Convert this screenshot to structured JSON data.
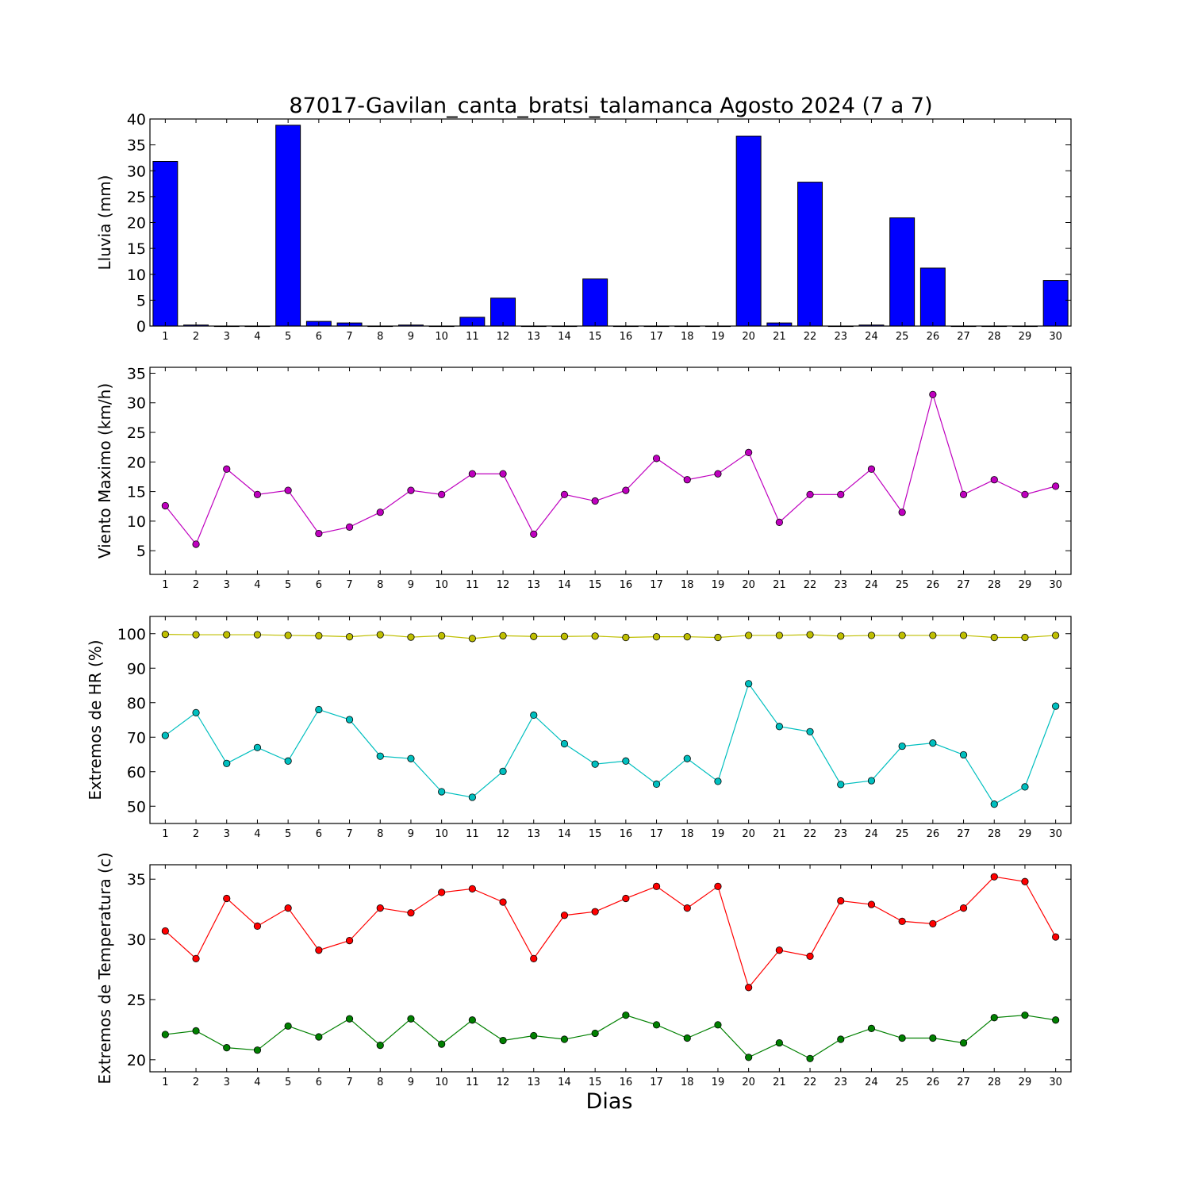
{
  "title": "87017-Gavilan_canta_bratsi_talamanca Agosto 2024  (7 a 7)",
  "xlabel": "Dias",
  "chart_data": [
    {
      "type": "bar",
      "ylabel": "Lluvia (mm)",
      "x": [
        1,
        2,
        3,
        4,
        5,
        6,
        7,
        8,
        9,
        10,
        11,
        12,
        13,
        14,
        15,
        16,
        17,
        18,
        19,
        20,
        21,
        22,
        23,
        24,
        25,
        26,
        27,
        28,
        29,
        30
      ],
      "ylim": [
        0,
        40
      ],
      "yticks": [
        0,
        5,
        10,
        15,
        20,
        25,
        30,
        35,
        40
      ],
      "xlim": [
        0.5,
        30.5
      ],
      "grid": false,
      "series": [
        {
          "values": [
            31.8,
            0.2,
            0,
            0,
            38.8,
            0.9,
            0.6,
            0,
            0.2,
            0,
            1.7,
            5.4,
            0,
            0,
            9.1,
            0,
            0,
            0,
            0,
            36.7,
            0.6,
            27.8,
            0,
            0.2,
            20.9,
            11.2,
            0,
            0,
            0,
            8.8
          ],
          "color": "#0000ff"
        }
      ]
    },
    {
      "type": "line",
      "ylabel": "Viento Maximo (km/h)",
      "x": [
        1,
        2,
        3,
        4,
        5,
        6,
        7,
        8,
        9,
        10,
        11,
        12,
        13,
        14,
        15,
        16,
        17,
        18,
        19,
        20,
        21,
        22,
        23,
        24,
        25,
        26,
        27,
        28,
        29,
        30
      ],
      "ylim": [
        1,
        36
      ],
      "yticks": [
        5,
        10,
        15,
        20,
        25,
        30,
        35
      ],
      "xlim": [
        0.5,
        30.5
      ],
      "grid": false,
      "series": [
        {
          "values": [
            12.6,
            6.1,
            18.8,
            14.5,
            15.2,
            7.9,
            9.0,
            11.5,
            15.2,
            14.5,
            18.0,
            18.0,
            7.8,
            14.5,
            13.4,
            15.2,
            20.6,
            17.0,
            18.0,
            21.6,
            9.8,
            14.5,
            14.5,
            18.8,
            11.5,
            31.4,
            14.5,
            17.0,
            14.5,
            15.9
          ],
          "color": "#bf00bf"
        }
      ]
    },
    {
      "type": "line",
      "ylabel": "Extremos de HR (%)",
      "x": [
        1,
        2,
        3,
        4,
        5,
        6,
        7,
        8,
        9,
        10,
        11,
        12,
        13,
        14,
        15,
        16,
        17,
        18,
        19,
        20,
        21,
        22,
        23,
        24,
        25,
        26,
        27,
        28,
        29,
        30
      ],
      "ylim": [
        45,
        105
      ],
      "yticks": [
        50,
        60,
        70,
        80,
        90,
        100
      ],
      "xlim": [
        0.5,
        30.5
      ],
      "grid": false,
      "series": [
        {
          "values": [
            99.8,
            99.7,
            99.7,
            99.7,
            99.5,
            99.4,
            99.1,
            99.7,
            99.0,
            99.4,
            98.6,
            99.4,
            99.2,
            99.2,
            99.3,
            98.9,
            99.1,
            99.1,
            98.9,
            99.5,
            99.5,
            99.7,
            99.3,
            99.5,
            99.5,
            99.5,
            99.5,
            98.9,
            98.9,
            99.5
          ],
          "color": "#bfbf00"
        },
        {
          "values": [
            70.5,
            77.1,
            62.4,
            67.0,
            63.1,
            78.0,
            75.1,
            64.5,
            63.8,
            54.2,
            52.6,
            60.1,
            76.4,
            68.1,
            62.2,
            63.1,
            56.4,
            63.8,
            57.2,
            85.5,
            73.1,
            71.6,
            56.3,
            57.4,
            67.4,
            68.3,
            64.9,
            50.6,
            55.6,
            79.0
          ],
          "color": "#00bfbf"
        }
      ]
    },
    {
      "type": "line",
      "ylabel": "Extremos de Temperatura (c)",
      "x": [
        1,
        2,
        3,
        4,
        5,
        6,
        7,
        8,
        9,
        10,
        11,
        12,
        13,
        14,
        15,
        16,
        17,
        18,
        19,
        20,
        21,
        22,
        23,
        24,
        25,
        26,
        27,
        28,
        29,
        30
      ],
      "ylim": [
        19,
        36.2
      ],
      "yticks": [
        20,
        25,
        30,
        35
      ],
      "xlim": [
        0.5,
        30.5
      ],
      "grid": false,
      "series": [
        {
          "values": [
            30.7,
            28.4,
            33.4,
            31.1,
            32.6,
            29.1,
            29.9,
            32.6,
            32.2,
            33.9,
            34.2,
            33.1,
            28.4,
            32.0,
            32.3,
            33.4,
            34.4,
            32.6,
            34.4,
            26.0,
            29.1,
            28.6,
            33.2,
            32.9,
            31.5,
            31.3,
            32.6,
            35.2,
            34.8,
            30.2
          ],
          "color": "#ff0000"
        },
        {
          "values": [
            22.1,
            22.4,
            21.0,
            20.8,
            22.8,
            21.9,
            23.4,
            21.2,
            23.4,
            21.3,
            23.3,
            21.6,
            22.0,
            21.7,
            22.2,
            23.7,
            22.9,
            21.8,
            22.9,
            20.2,
            21.4,
            20.1,
            21.7,
            22.6,
            21.8,
            21.8,
            21.4,
            23.5,
            23.7,
            23.3
          ],
          "color": "#008000"
        }
      ]
    }
  ]
}
